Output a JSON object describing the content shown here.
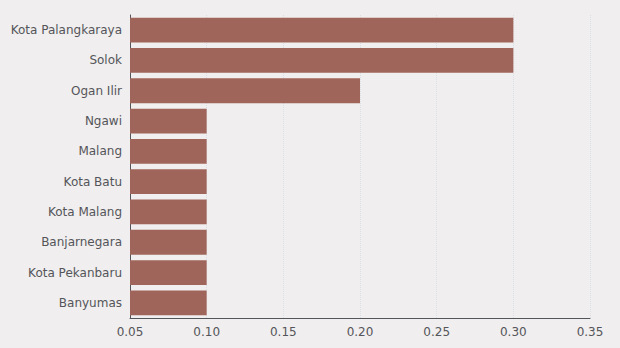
{
  "chart_data": {
    "type": "bar",
    "orientation": "horizontal",
    "categories": [
      "Banyumas",
      "Kota Pekanbaru",
      "Banjarnegara",
      "Kota Malang",
      "Kota Batu",
      "Malang",
      "Ngawi",
      "Ogan Ilir",
      "Solok",
      "Kota Palangkaraya"
    ],
    "values": [
      0.1,
      0.1,
      0.1,
      0.1,
      0.1,
      0.1,
      0.1,
      0.2,
      0.3,
      0.3
    ],
    "color": "#a0655a",
    "xlim": [
      0.05,
      0.35
    ],
    "xticks": [
      0.05,
      {
        "value": 0.1,
        "label": "0.10"
      },
      0.15,
      {
        "value": 0.2,
        "label": "0.20"
      },
      0.25,
      {
        "value": 0.3,
        "label": "0.30"
      },
      0.35
    ],
    "grid": true
  }
}
